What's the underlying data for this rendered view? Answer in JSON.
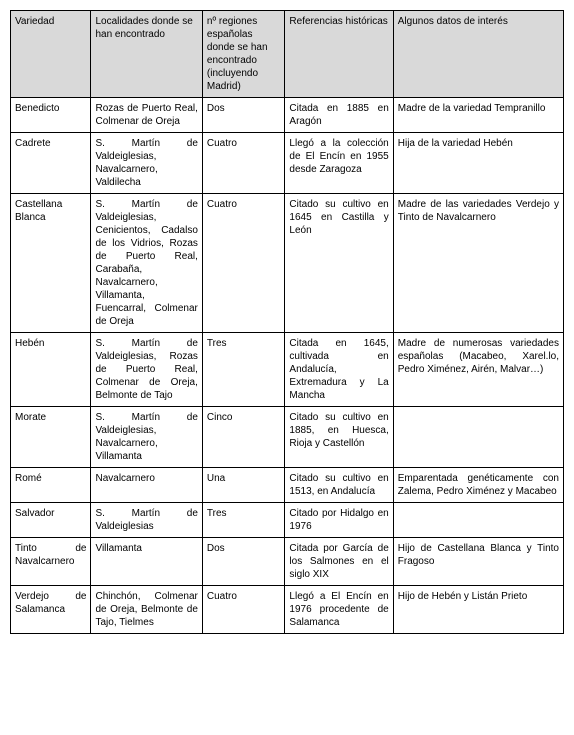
{
  "headers": {
    "c1": "Variedad",
    "c2": "Localidades donde se han encontrado",
    "c3": "nº regiones españolas donde se han encontrado (incluyendo Madrid)",
    "c4": "Referencias históricas",
    "c5": "Algunos datos de interés"
  },
  "rows": [
    {
      "variedad": "Benedicto",
      "localidades": "Rozas de Puerto Real, Colmenar de Oreja",
      "regiones": "Dos",
      "referencias": "Citada en 1885 en Aragón",
      "datos": "Madre de la variedad Tempranillo"
    },
    {
      "variedad": "Cadrete",
      "localidades": "S. Martín de Valdeiglesias, Navalcarnero, Valdilecha",
      "regiones": "Cuatro",
      "referencias": "Llegó a la colección de El Encín en 1955 desde Zaragoza",
      "datos": "Hija de la variedad Hebén"
    },
    {
      "variedad": "Castellana Blanca",
      "localidades": "S. Martín de Valdeiglesias, Cenicientos, Cadalso de los Vidrios, Rozas de Puerto Real, Carabaña, Navalcarnero, Villamanta, Fuencarral, Colmenar de Oreja",
      "regiones": "Cuatro",
      "referencias": "Citado su cultivo en 1645 en Castilla y León",
      "datos": "Madre de las variedades Verdejo y Tinto de Navalcarnero"
    },
    {
      "variedad": "Hebén",
      "localidades": "S. Martín de Valdeiglesias, Rozas de Puerto Real, Colmenar de Oreja, Belmonte de Tajo",
      "regiones": "Tres",
      "referencias": "Citada en 1645, cultivada en Andalucía, Extremadura y La Mancha",
      "datos": "Madre de numerosas variedades españolas (Macabeo, Xarel.lo, Pedro Ximénez, Airén, Malvar…)"
    },
    {
      "variedad": "Morate",
      "localidades": "S. Martín de Valdeiglesias, Navalcarnero, Villamanta",
      "regiones": "Cinco",
      "referencias": "Citado su cultivo en 1885, en Huesca, Rioja y Castellón",
      "datos": ""
    },
    {
      "variedad": "Romé",
      "localidades": "Navalcarnero",
      "regiones": "Una",
      "referencias": "Citado su cultivo en 1513, en Andalucía",
      "datos": "Emparentada genéticamente con Zalema, Pedro Ximénez y Macabeo"
    },
    {
      "variedad": "Salvador",
      "localidades": "S. Martín de Valdeiglesias",
      "regiones": "Tres",
      "referencias": "Citado por Hidalgo en 1976",
      "datos": ""
    },
    {
      "variedad": "Tinto de Navalcarnero",
      "localidades": "Villamanta",
      "regiones": "Dos",
      "referencias": "Citada por García de los Salmones en el siglo XIX",
      "datos": "Hijo de Castellana Blanca y Tinto Fragoso"
    },
    {
      "variedad": "Verdejo de Salamanca",
      "localidades": "Chinchón, Colmenar de Oreja, Belmonte de Tajo, Tielmes",
      "regiones": "Cuatro",
      "referencias": "Llegó a El Encín en 1976 procedente de Salamanca",
      "datos": "Hijo de Hebén y Listán Prieto"
    }
  ]
}
